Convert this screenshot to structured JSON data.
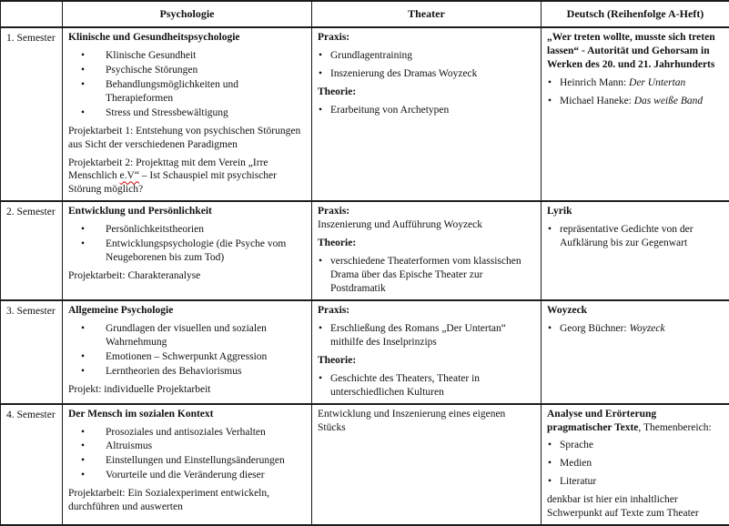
{
  "colors": {
    "border": "#1c1c1c",
    "text": "#111111",
    "squiggle": "#cc0000",
    "background": "#ffffff"
  },
  "table": {
    "columns": [
      {
        "key": "semester",
        "label": ""
      },
      {
        "key": "psychologie",
        "label": "Psychologie"
      },
      {
        "key": "theater",
        "label": "Theater"
      },
      {
        "key": "deutsch",
        "label": "Deutsch (Reihenfolge A-Heft)"
      }
    ],
    "rows": [
      {
        "semester": "1. Semester",
        "psychologie": [
          {
            "type": "heading",
            "text": "Klinische und Gesundheitspsychologie"
          },
          {
            "type": "list",
            "variant": "wide",
            "items": [
              "Klinische Gesundheit",
              "Psychische Störungen",
              "Behandlungsmöglichkeiten und Therapieformen",
              "Stress und Stressbewältigung"
            ]
          },
          {
            "type": "para",
            "text": "Projektarbeit 1: Entstehung von psychischen Störungen aus Sicht der verschiedenen Paradigmen"
          },
          {
            "type": "para",
            "runs": [
              {
                "text": "Projektarbeit 2: Projekttag mit dem Verein „Irre Menschlich "
              },
              {
                "text": "e.V“",
                "style": "squiggle"
              },
              {
                "text": " – Ist Schauspiel mit psychischer Störung möglich?"
              }
            ]
          }
        ],
        "theater": [
          {
            "type": "heading",
            "text": "Praxis:"
          },
          {
            "type": "list",
            "variant": "tight",
            "items": [
              "Grundlagentraining",
              "Inszenierung des Dramas Woyzeck"
            ]
          },
          {
            "type": "heading",
            "text": "Theorie:"
          },
          {
            "type": "list",
            "variant": "tight",
            "items": [
              "Erarbeitung von Archetypen"
            ]
          }
        ],
        "deutsch": [
          {
            "type": "heading",
            "text": "„Wer treten wollte, musste sich treten lassen“ - Autorität und Gehorsam in Werken des 20. und 21. Jahrhunderts"
          },
          {
            "type": "list",
            "variant": "tight",
            "items": [
              {
                "runs": [
                  {
                    "text": "Heinrich Mann: "
                  },
                  {
                    "text": "Der Untertan",
                    "style": "italic"
                  }
                ]
              },
              {
                "runs": [
                  {
                    "text": "Michael Haneke: "
                  },
                  {
                    "text": "Das weiße Band",
                    "style": "italic"
                  }
                ]
              }
            ]
          }
        ]
      },
      {
        "semester": "2. Semester",
        "psychologie": [
          {
            "type": "heading",
            "text": "Entwicklung und Persönlichkeit"
          },
          {
            "type": "list",
            "variant": "wide",
            "items": [
              "Persönlichkeitstheorien",
              "Entwicklungspsychologie (die Psyche vom Neugeborenen bis zum Tod)"
            ]
          },
          {
            "type": "para",
            "text": "Projektarbeit: Charakteranalyse"
          }
        ],
        "theater": [
          {
            "type": "heading",
            "text": "Praxis:"
          },
          {
            "type": "para",
            "tight": true,
            "text": "Inszenierung und Aufführung Woyzeck"
          },
          {
            "type": "heading",
            "text": "Theorie:"
          },
          {
            "type": "list",
            "variant": "tight",
            "items": [
              "verschiedene Theaterformen vom klassischen Drama über das Epische Theater zur Postdramatik"
            ]
          }
        ],
        "deutsch": [
          {
            "type": "heading",
            "text": "Lyrik"
          },
          {
            "type": "list",
            "variant": "tight",
            "items": [
              "repräsentative Gedichte von der Aufklärung bis zur Gegenwart"
            ]
          }
        ]
      },
      {
        "semester": "3. Semester",
        "psychologie": [
          {
            "type": "heading",
            "text": "Allgemeine Psychologie"
          },
          {
            "type": "list",
            "variant": "wide",
            "items": [
              "Grundlagen der visuellen und sozialen Wahrnehmung",
              "Emotionen – Schwerpunkt Aggression",
              "Lerntheorien des Behaviorismus"
            ]
          },
          {
            "type": "para",
            "text": "Projekt: individuelle Projektarbeit"
          }
        ],
        "theater": [
          {
            "type": "heading",
            "text": "Praxis:"
          },
          {
            "type": "list",
            "variant": "tight",
            "items": [
              "Erschließung des Romans „Der Untertan“ mithilfe des Inselprinzips"
            ]
          },
          {
            "type": "heading",
            "text": "Theorie:"
          },
          {
            "type": "list",
            "variant": "tight",
            "items": [
              "Geschichte des Theaters, Theater in unterschiedlichen Kulturen"
            ]
          }
        ],
        "deutsch": [
          {
            "type": "heading",
            "text": "Woyzeck"
          },
          {
            "type": "list",
            "variant": "tight",
            "items": [
              {
                "runs": [
                  {
                    "text": "Georg Büchner: "
                  },
                  {
                    "text": "Woyzeck",
                    "style": "italic"
                  }
                ]
              }
            ]
          }
        ]
      },
      {
        "semester": "4. Semester",
        "psychologie": [
          {
            "type": "heading",
            "text": "Der Mensch im sozialen Kontext"
          },
          {
            "type": "list",
            "variant": "wide",
            "items": [
              "Prosoziales und antisoziales Verhalten",
              "Altruismus",
              "Einstellungen und Einstellungsänderungen",
              "Vorurteile und die Veränderung dieser"
            ]
          },
          {
            "type": "para",
            "text": "Projektarbeit: Ein Sozialexperiment entwickeln, durchführen und auswerten"
          }
        ],
        "theater": [
          {
            "type": "para",
            "text": "Entwicklung und Inszenierung eines eigenen Stücks"
          }
        ],
        "deutsch": [
          {
            "type": "para",
            "runs": [
              {
                "text": "Analyse und Erörterung pragmatischer Texte",
                "style": "bold"
              },
              {
                "text": ", Themenbereich:"
              }
            ]
          },
          {
            "type": "list",
            "variant": "tight",
            "items": [
              "Sprache",
              "Medien",
              "Literatur"
            ]
          },
          {
            "type": "para",
            "text": "denkbar ist hier ein inhaltlicher Schwerpunkt auf Texte zum Theater"
          }
        ]
      }
    ]
  }
}
